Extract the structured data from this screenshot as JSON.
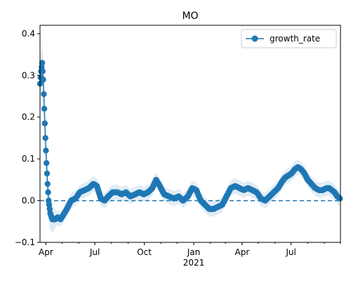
{
  "chart_data": {
    "type": "line",
    "title": "MO",
    "xlabel": "",
    "ylabel": "",
    "x_range": [
      "2020-03-21",
      "2021-10-01"
    ],
    "ylim": [
      -0.1,
      0.42
    ],
    "y_ticks": [
      -0.1,
      0.0,
      0.1,
      0.2,
      0.3,
      0.4
    ],
    "y_tick_labels": [
      "−0.1",
      "0.0",
      "0.1",
      "0.2",
      "0.3",
      "0.4"
    ],
    "x_ticks": [
      {
        "date": "2020-04-01",
        "label": "Apr"
      },
      {
        "date": "2020-07-01",
        "label": "Jul"
      },
      {
        "date": "2020-10-01",
        "label": "Oct"
      },
      {
        "date": "2021-01-01",
        "label": "Jan"
      },
      {
        "date": "2021-04-01",
        "label": "Apr"
      },
      {
        "date": "2021-07-01",
        "label": "Jul"
      }
    ],
    "x_year_label": {
      "date": "2021-01-01",
      "label": "2021"
    },
    "reference_line": {
      "y": 0.0,
      "style": "dashed"
    },
    "legend": {
      "position": "top-right",
      "entries": [
        "growth_rate"
      ]
    },
    "grid": false,
    "series": [
      {
        "name": "growth_rate",
        "color": "#1f77b4",
        "band_color": "#c6dcef",
        "points": [
          {
            "x": "2020-03-21",
            "y": 0.28
          },
          {
            "x": "2020-03-23",
            "y": 0.31
          },
          {
            "x": "2020-03-25",
            "y": 0.33
          },
          {
            "x": "2020-03-27",
            "y": 0.29
          },
          {
            "x": "2020-03-29",
            "y": 0.22
          },
          {
            "x": "2020-03-31",
            "y": 0.15
          },
          {
            "x": "2020-04-02",
            "y": 0.09
          },
          {
            "x": "2020-04-04",
            "y": 0.04
          },
          {
            "x": "2020-04-06",
            "y": 0.0
          },
          {
            "x": "2020-04-09",
            "y": -0.03
          },
          {
            "x": "2020-04-13",
            "y": -0.045
          },
          {
            "x": "2020-04-18",
            "y": -0.045
          },
          {
            "x": "2020-04-23",
            "y": -0.04
          },
          {
            "x": "2020-04-28",
            "y": -0.045
          },
          {
            "x": "2020-05-03",
            "y": -0.035
          },
          {
            "x": "2020-05-10",
            "y": -0.02
          },
          {
            "x": "2020-05-18",
            "y": 0.0
          },
          {
            "x": "2020-05-26",
            "y": 0.005
          },
          {
            "x": "2020-06-03",
            "y": 0.02
          },
          {
            "x": "2020-06-12",
            "y": 0.025
          },
          {
            "x": "2020-06-20",
            "y": 0.03
          },
          {
            "x": "2020-06-28",
            "y": 0.04
          },
          {
            "x": "2020-07-05",
            "y": 0.035
          },
          {
            "x": "2020-07-12",
            "y": 0.005
          },
          {
            "x": "2020-07-19",
            "y": 0.0
          },
          {
            "x": "2020-07-26",
            "y": 0.01
          },
          {
            "x": "2020-08-03",
            "y": 0.02
          },
          {
            "x": "2020-08-12",
            "y": 0.02
          },
          {
            "x": "2020-08-20",
            "y": 0.015
          },
          {
            "x": "2020-08-28",
            "y": 0.02
          },
          {
            "x": "2020-09-05",
            "y": 0.01
          },
          {
            "x": "2020-09-14",
            "y": 0.015
          },
          {
            "x": "2020-09-22",
            "y": 0.02
          },
          {
            "x": "2020-09-30",
            "y": 0.015
          },
          {
            "x": "2020-10-08",
            "y": 0.02
          },
          {
            "x": "2020-10-16",
            "y": 0.03
          },
          {
            "x": "2020-10-23",
            "y": 0.05
          },
          {
            "x": "2020-10-30",
            "y": 0.035
          },
          {
            "x": "2020-11-07",
            "y": 0.015
          },
          {
            "x": "2020-11-16",
            "y": 0.01
          },
          {
            "x": "2020-11-25",
            "y": 0.005
          },
          {
            "x": "2020-12-04",
            "y": 0.01
          },
          {
            "x": "2020-12-12",
            "y": 0.0
          },
          {
            "x": "2020-12-21",
            "y": 0.01
          },
          {
            "x": "2020-12-29",
            "y": 0.03
          },
          {
            "x": "2021-01-06",
            "y": 0.025
          },
          {
            "x": "2021-01-14",
            "y": 0.0
          },
          {
            "x": "2021-01-22",
            "y": -0.01
          },
          {
            "x": "2021-01-30",
            "y": -0.02
          },
          {
            "x": "2021-02-07",
            "y": -0.02
          },
          {
            "x": "2021-02-15",
            "y": -0.015
          },
          {
            "x": "2021-02-23",
            "y": -0.01
          },
          {
            "x": "2021-03-03",
            "y": 0.01
          },
          {
            "x": "2021-03-11",
            "y": 0.03
          },
          {
            "x": "2021-03-19",
            "y": 0.035
          },
          {
            "x": "2021-03-27",
            "y": 0.03
          },
          {
            "x": "2021-04-04",
            "y": 0.025
          },
          {
            "x": "2021-04-12",
            "y": 0.03
          },
          {
            "x": "2021-04-20",
            "y": 0.025
          },
          {
            "x": "2021-04-28",
            "y": 0.02
          },
          {
            "x": "2021-05-06",
            "y": 0.005
          },
          {
            "x": "2021-05-14",
            "y": 0.0
          },
          {
            "x": "2021-05-22",
            "y": 0.01
          },
          {
            "x": "2021-05-30",
            "y": 0.02
          },
          {
            "x": "2021-06-07",
            "y": 0.03
          },
          {
            "x": "2021-06-14",
            "y": 0.045
          },
          {
            "x": "2021-06-20",
            "y": 0.055
          },
          {
            "x": "2021-06-26",
            "y": 0.06
          },
          {
            "x": "2021-07-02",
            "y": 0.065
          },
          {
            "x": "2021-07-08",
            "y": 0.075
          },
          {
            "x": "2021-07-14",
            "y": 0.08
          },
          {
            "x": "2021-07-20",
            "y": 0.075
          },
          {
            "x": "2021-07-26",
            "y": 0.065
          },
          {
            "x": "2021-08-01",
            "y": 0.05
          },
          {
            "x": "2021-08-08",
            "y": 0.04
          },
          {
            "x": "2021-08-15",
            "y": 0.03
          },
          {
            "x": "2021-08-22",
            "y": 0.025
          },
          {
            "x": "2021-08-29",
            "y": 0.025
          },
          {
            "x": "2021-09-05",
            "y": 0.03
          },
          {
            "x": "2021-09-10",
            "y": 0.03
          },
          {
            "x": "2021-09-15",
            "y": 0.025
          },
          {
            "x": "2021-09-20",
            "y": 0.02
          },
          {
            "x": "2021-09-25",
            "y": 0.01
          },
          {
            "x": "2021-09-30",
            "y": 0.005
          }
        ]
      }
    ]
  }
}
